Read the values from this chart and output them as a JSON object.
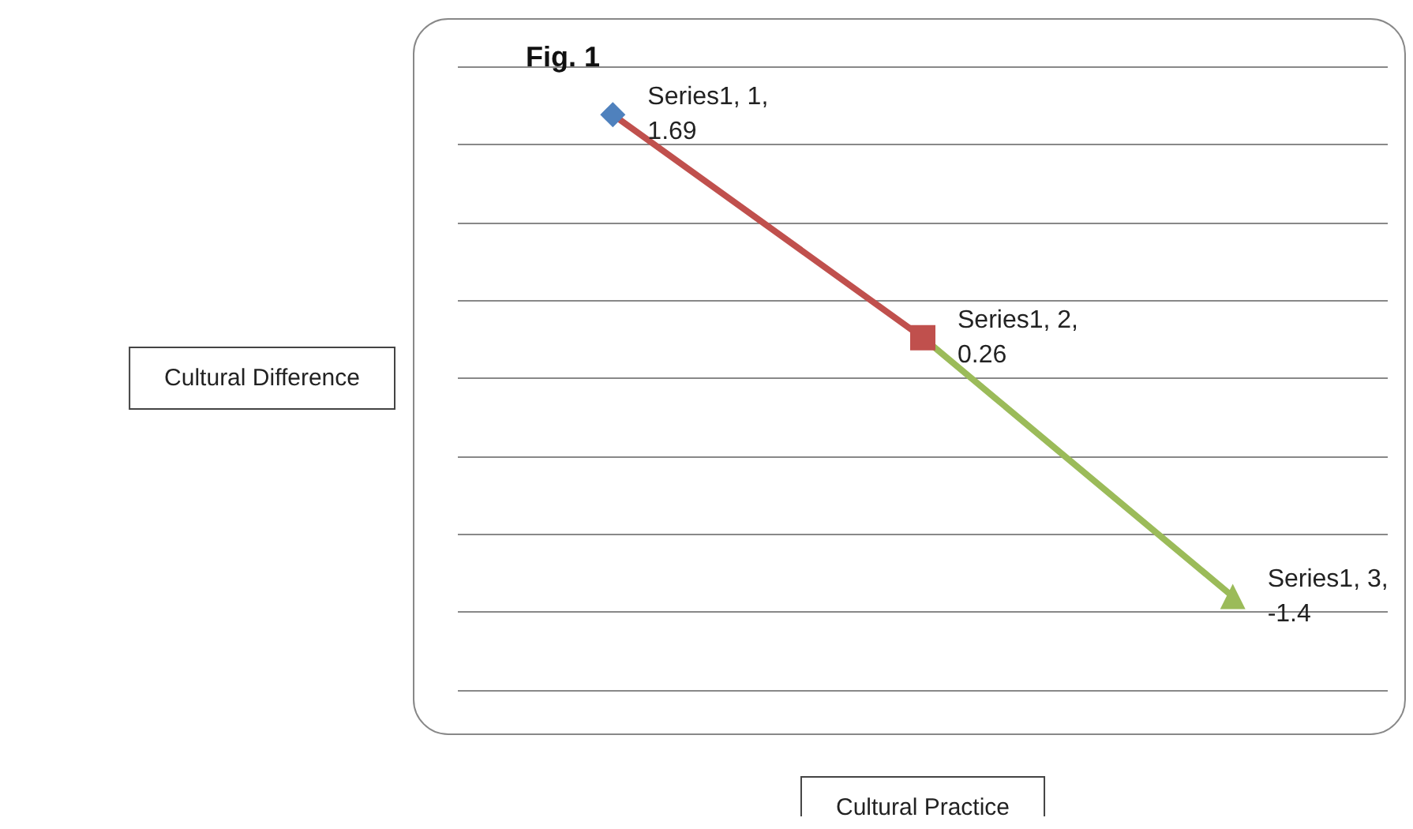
{
  "chart_data": {
    "type": "line",
    "title": "Fig. 1",
    "xlabel": "Cultural Practice",
    "ylabel": "Cultural Difference",
    "categories": [
      null,
      null,
      null
    ],
    "series": [
      {
        "color": "#4f81bd",
        "marker": "diamond",
        "values": [
          1.69,
          null,
          null
        ],
        "value_labels": [
          "Series1, 1, 1.69",
          null,
          null
        ]
      },
      {
        "color": "#c0504d",
        "marker": "square",
        "values": [
          1.69,
          0.26,
          null
        ],
        "value_labels": [
          null,
          "Series1, 2, 0.26",
          null
        ]
      },
      {
        "color": "#9bbb59",
        "marker": "triangle",
        "values": [
          null,
          0.26,
          -1.4
        ],
        "value_labels": [
          null,
          null,
          "Series1, 3, -1.4"
        ]
      }
    ],
    "ylim": [
      -2,
      2
    ],
    "yticks": [
      -2,
      -1.5,
      -1,
      -0.5,
      0,
      0.5,
      1,
      1.5,
      2
    ],
    "tick_labels": false,
    "grid": "y"
  }
}
